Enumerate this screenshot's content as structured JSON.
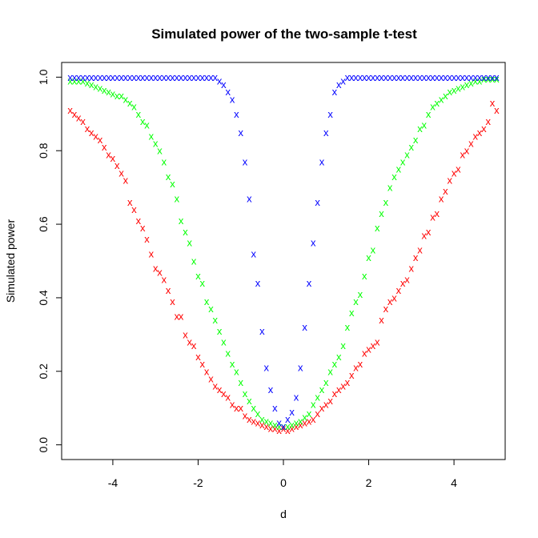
{
  "chart_data": {
    "type": "scatter",
    "title": "Simulated power of the two-sample t-test",
    "xlabel": "d",
    "ylabel": "Simulated power",
    "xlim": [
      -5.2,
      5.2
    ],
    "ylim": [
      -0.04,
      1.04
    ],
    "xticks": [
      "-4",
      "-2",
      "0",
      "2",
      "4"
    ],
    "xtick_values": [
      -4,
      -2,
      0,
      2,
      4
    ],
    "yticks": [
      "0.0",
      "0.2",
      "0.4",
      "0.6",
      "0.8",
      "1.0"
    ],
    "ytick_values": [
      0,
      0.2,
      0.4,
      0.6,
      0.8,
      1.0
    ],
    "marker": "x",
    "grid": false,
    "x": [
      -5.0,
      -4.9,
      -4.8,
      -4.7,
      -4.6,
      -4.5,
      -4.4,
      -4.3,
      -4.2,
      -4.1,
      -4.0,
      -3.9,
      -3.8,
      -3.7,
      -3.6,
      -3.5,
      -3.4,
      -3.3,
      -3.2,
      -3.1,
      -3.0,
      -2.9,
      -2.8,
      -2.7,
      -2.6,
      -2.5,
      -2.4,
      -2.3,
      -2.2,
      -2.1,
      -2.0,
      -1.9,
      -1.8,
      -1.7,
      -1.6,
      -1.5,
      -1.4,
      -1.3,
      -1.2,
      -1.1,
      -1.0,
      -0.9,
      -0.8,
      -0.7,
      -0.6,
      -0.5,
      -0.4,
      -0.3,
      -0.2,
      -0.1,
      0.0,
      0.1,
      0.2,
      0.3,
      0.4,
      0.5,
      0.6,
      0.7,
      0.8,
      0.9,
      1.0,
      1.1,
      1.2,
      1.3,
      1.4,
      1.5,
      1.6,
      1.7,
      1.8,
      1.9,
      2.0,
      2.1,
      2.2,
      2.3,
      2.4,
      2.5,
      2.6,
      2.7,
      2.8,
      2.9,
      3.0,
      3.1,
      3.2,
      3.3,
      3.4,
      3.5,
      3.6,
      3.7,
      3.8,
      3.9,
      4.0,
      4.1,
      4.2,
      4.3,
      4.4,
      4.5,
      4.6,
      4.7,
      4.8,
      4.9,
      5.0
    ],
    "series": [
      {
        "color": "#ff0000",
        "values": [
          0.91,
          0.9,
          0.89,
          0.88,
          0.86,
          0.85,
          0.84,
          0.83,
          0.81,
          0.79,
          0.78,
          0.76,
          0.74,
          0.72,
          0.66,
          0.64,
          0.61,
          0.59,
          0.56,
          0.52,
          0.48,
          0.47,
          0.45,
          0.42,
          0.39,
          0.35,
          0.35,
          0.3,
          0.28,
          0.27,
          0.24,
          0.22,
          0.2,
          0.18,
          0.16,
          0.15,
          0.14,
          0.13,
          0.11,
          0.1,
          0.1,
          0.08,
          0.07,
          0.065,
          0.06,
          0.055,
          0.05,
          0.045,
          0.045,
          0.04,
          0.045,
          0.04,
          0.045,
          0.05,
          0.055,
          0.06,
          0.065,
          0.07,
          0.085,
          0.1,
          0.11,
          0.12,
          0.14,
          0.15,
          0.16,
          0.17,
          0.19,
          0.21,
          0.22,
          0.25,
          0.26,
          0.27,
          0.28,
          0.34,
          0.37,
          0.39,
          0.4,
          0.42,
          0.44,
          0.45,
          0.48,
          0.51,
          0.53,
          0.57,
          0.58,
          0.62,
          0.63,
          0.67,
          0.69,
          0.72,
          0.74,
          0.75,
          0.79,
          0.8,
          0.82,
          0.84,
          0.85,
          0.86,
          0.88,
          0.93,
          0.91
        ]
      },
      {
        "color": "#00ff00",
        "values": [
          0.99,
          0.99,
          0.99,
          0.99,
          0.985,
          0.98,
          0.975,
          0.97,
          0.965,
          0.96,
          0.955,
          0.95,
          0.95,
          0.94,
          0.93,
          0.92,
          0.9,
          0.88,
          0.87,
          0.84,
          0.82,
          0.8,
          0.77,
          0.73,
          0.71,
          0.67,
          0.61,
          0.58,
          0.55,
          0.5,
          0.46,
          0.44,
          0.39,
          0.37,
          0.34,
          0.31,
          0.28,
          0.25,
          0.22,
          0.2,
          0.17,
          0.14,
          0.12,
          0.1,
          0.085,
          0.07,
          0.065,
          0.06,
          0.055,
          0.05,
          0.05,
          0.05,
          0.055,
          0.06,
          0.065,
          0.075,
          0.085,
          0.11,
          0.13,
          0.15,
          0.17,
          0.2,
          0.22,
          0.24,
          0.27,
          0.32,
          0.36,
          0.39,
          0.41,
          0.46,
          0.51,
          0.53,
          0.59,
          0.63,
          0.66,
          0.7,
          0.73,
          0.75,
          0.77,
          0.79,
          0.81,
          0.83,
          0.86,
          0.87,
          0.9,
          0.92,
          0.93,
          0.94,
          0.95,
          0.96,
          0.965,
          0.97,
          0.975,
          0.98,
          0.985,
          0.99,
          0.99,
          0.995,
          0.995,
          0.995,
          0.995
        ]
      },
      {
        "color": "#0000ff",
        "values": [
          1.0,
          1.0,
          1.0,
          1.0,
          1.0,
          1.0,
          1.0,
          1.0,
          1.0,
          1.0,
          1.0,
          1.0,
          1.0,
          1.0,
          1.0,
          1.0,
          1.0,
          1.0,
          1.0,
          1.0,
          1.0,
          1.0,
          1.0,
          1.0,
          1.0,
          1.0,
          1.0,
          1.0,
          1.0,
          1.0,
          1.0,
          1.0,
          1.0,
          1.0,
          1.0,
          0.99,
          0.98,
          0.96,
          0.94,
          0.9,
          0.85,
          0.77,
          0.67,
          0.52,
          0.44,
          0.31,
          0.21,
          0.15,
          0.1,
          0.06,
          0.05,
          0.07,
          0.09,
          0.13,
          0.21,
          0.32,
          0.44,
          0.55,
          0.66,
          0.77,
          0.85,
          0.9,
          0.96,
          0.98,
          0.99,
          1.0,
          1.0,
          1.0,
          1.0,
          1.0,
          1.0,
          1.0,
          1.0,
          1.0,
          1.0,
          1.0,
          1.0,
          1.0,
          1.0,
          1.0,
          1.0,
          1.0,
          1.0,
          1.0,
          1.0,
          1.0,
          1.0,
          1.0,
          1.0,
          1.0,
          1.0,
          1.0,
          1.0,
          1.0,
          1.0,
          1.0,
          1.0,
          1.0,
          1.0,
          1.0,
          1.0
        ]
      }
    ]
  }
}
